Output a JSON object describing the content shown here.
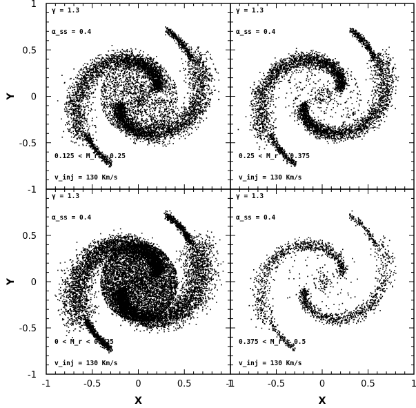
{
  "chart_data": {
    "type": "scatter",
    "layout": "2x2 panel grid, shared axes",
    "xlabel": "X",
    "ylabel": "Y",
    "xlim": [
      -1,
      1
    ],
    "ylim": [
      -1,
      1
    ],
    "x_tick_labels": [
      "-1",
      "-0.5",
      "0",
      "0.5",
      "1"
    ],
    "y_tick_labels": [
      "-1",
      "-0.5",
      "0",
      "0.5",
      "1"
    ],
    "grid": false,
    "panels": [
      {
        "position": "top-left",
        "annotations": {
          "gamma": "γ = 1.3",
          "alpha": "α_ss = 0.4",
          "range": "0.125 < M_r < 0.25",
          "vinj": "v_inj = 130 Km/s"
        },
        "density": 1.0,
        "core_fill": 0.55,
        "arm_width": 0.13
      },
      {
        "position": "top-right",
        "annotations": {
          "gamma": "γ = 1.3",
          "alpha": "α_ss = 0.4",
          "range": "0.25 < M_r < 0.375",
          "vinj": "v_inj = 130 Km/s"
        },
        "density": 0.85,
        "core_fill": 0.12,
        "arm_width": 0.11
      },
      {
        "position": "bottom-left",
        "annotations": {
          "gamma": "γ = 1.3",
          "alpha": "α_ss = 0.4",
          "range": "0 < M_r < 0.125",
          "vinj": "v_inj = 130 Km/s"
        },
        "density": 1.6,
        "core_fill": 1.0,
        "arm_width": 0.16
      },
      {
        "position": "bottom-right",
        "annotations": {
          "gamma": "γ = 1.3",
          "alpha": "α_ss = 0.4",
          "range": "0.375 < M_r < 0.5",
          "vinj": "v_inj = 130 Km/s"
        },
        "density": 0.35,
        "core_fill": 0.06,
        "arm_width": 0.09
      }
    ]
  }
}
